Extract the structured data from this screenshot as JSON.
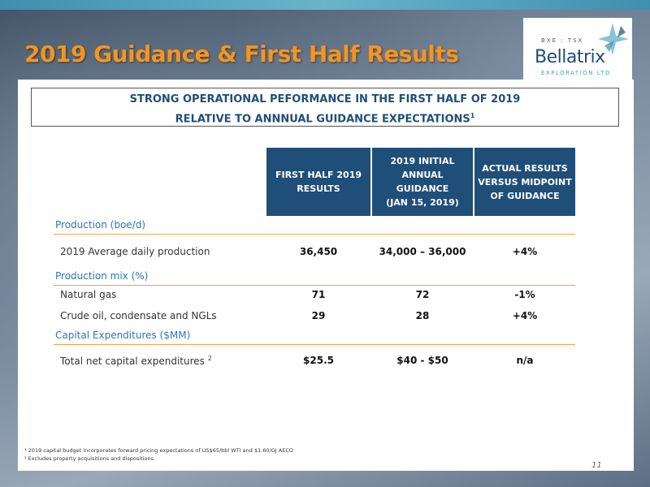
{
  "slide": {
    "title": "2019 Guidance & First Half Results",
    "page_number": "11"
  },
  "logo": {
    "exchange": "BXE : TSX",
    "name": "Bellatrix",
    "subtitle": "EXPLORATION LTD"
  },
  "headline": {
    "line1": "STRONG OPERATIONAL PEFORMANCE IN THE FIRST HALF OF 2019",
    "line2": "RELATIVE TO ANNNUAL GUIDANCE EXPECTATIONS",
    "line2_sup": "1"
  },
  "table": {
    "columns": [
      {
        "line1": "FIRST HALF 2019",
        "line2": "RESULTS",
        "line3": ""
      },
      {
        "line1": "2019 INITIAL",
        "line2": "ANNUAL GUIDANCE",
        "line3": "(JAN 15, 2019)"
      },
      {
        "line1": "ACTUAL RESULTS",
        "line2": "VERSUS MIDPOINT",
        "line3": "OF GUIDANCE"
      }
    ],
    "sections": [
      {
        "label": "Production (boe/d)",
        "rows": [
          {
            "label": "2019 Average daily production",
            "sup": "",
            "values": [
              "36,450",
              "34,000 – 36,000",
              "+4%"
            ]
          }
        ]
      },
      {
        "label": "Production mix (%)",
        "rows": [
          {
            "label": "Natural gas",
            "sup": "",
            "values": [
              "71",
              "72",
              "-1%"
            ]
          },
          {
            "label": "Crude oil, condensate and NGLs",
            "sup": "",
            "values": [
              "29",
              "28",
              "+4%"
            ]
          }
        ]
      },
      {
        "label": "Capital Expenditures ($MM)",
        "rows": [
          {
            "label": "Total net capital expenditures",
            "sup": "2",
            "values": [
              "$25.5",
              "$40 - $50",
              "n/a"
            ]
          }
        ]
      }
    ]
  },
  "footnotes": {
    "note1": "¹ 2019 capital budget incorporates forward pricing expectations of US$65/bbl WTI and $1.60/GJ AECO",
    "note2": "² Excludes property acquisitions and dispositions."
  },
  "colors": {
    "title": "#f7941d",
    "header_fill": "#1f4e79",
    "section_label": "#2e75b6",
    "rule": "#f7a04a"
  }
}
